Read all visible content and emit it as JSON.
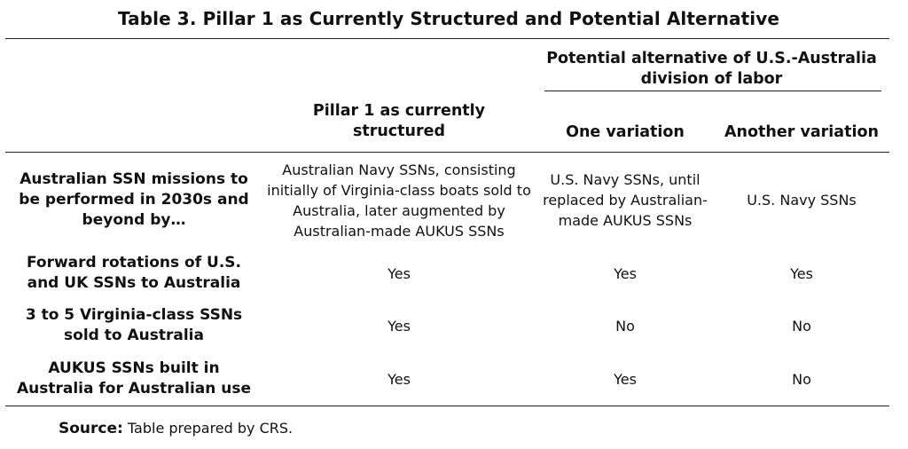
{
  "table": {
    "title": "Table 3. Pillar 1 as Currently Structured and Potential Alternative",
    "headers": {
      "pillar1": "Pillar 1 as currently structured",
      "group": "Potential alternative of U.S.-Australia division of labor",
      "variation1": "One variation",
      "variation2": "Another variation"
    },
    "rows": [
      {
        "label": "Australian SSN missions to be performed in 2030s and beyond by…",
        "pillar1": "Australian Navy SSNs, consisting initially of Virginia-class boats sold to Australia, later augmented by Australian-made AUKUS SSNs",
        "variation1": "U.S. Navy SSNs, until replaced by Australian-made AUKUS SSNs",
        "variation2": "U.S. Navy SSNs"
      },
      {
        "label": "Forward rotations of U.S. and UK SSNs to Australia",
        "pillar1": "Yes",
        "variation1": "Yes",
        "variation2": "Yes"
      },
      {
        "label": "3 to 5 Virginia-class SSNs sold to Australia",
        "pillar1": "Yes",
        "variation1": "No",
        "variation2": "No"
      },
      {
        "label": "AUKUS SSNs built in Australia for Australian use",
        "pillar1": "Yes",
        "variation1": "Yes",
        "variation2": "No"
      }
    ]
  },
  "source": {
    "label": "Source:",
    "text": "Table prepared by CRS."
  }
}
